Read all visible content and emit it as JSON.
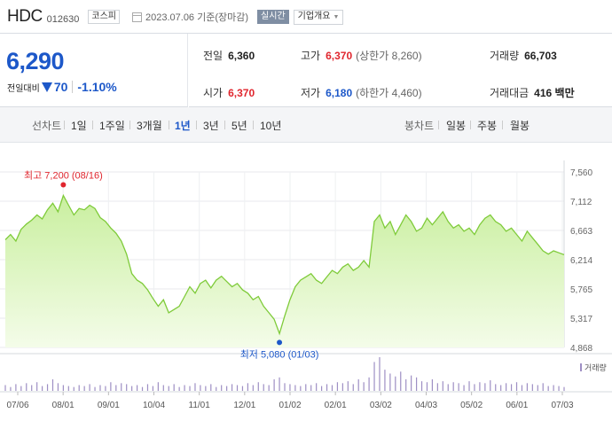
{
  "header": {
    "name": "HDC",
    "code": "012630",
    "market": "코스피",
    "date": "2023.07.06 기준(장마감)",
    "realtime": "실시간",
    "overview": "기업개요"
  },
  "price": {
    "current": "6,290",
    "change_label": "전일대비",
    "change": "70",
    "change_pct": "-1.10%",
    "direction": "down"
  },
  "stats": {
    "prev_label": "전일",
    "prev": "6,360",
    "open_label": "시가",
    "open": "6,370",
    "high_label": "고가",
    "high": "6,370",
    "upper_limit": "(상한가 8,260)",
    "low_label": "저가",
    "low": "6,180",
    "lower_limit": "(하한가 4,460)",
    "volume_label": "거래량",
    "volume": "66,703",
    "amount_label": "거래대금",
    "amount": "416 백만"
  },
  "tabs": {
    "line_label": "선차트",
    "line": [
      "1일",
      "1주일",
      "3개월",
      "1년",
      "3년",
      "5년",
      "10년"
    ],
    "active": "1년",
    "candle_label": "봉차트",
    "candle": [
      "일봉",
      "주봉",
      "월봉"
    ]
  },
  "colors": {
    "price_blue": "#1d58c9",
    "up_red": "#e0262e",
    "area_line": "#7fcb3a",
    "area_fill_top": "#c9ef9f",
    "area_fill_bottom": "#f4fce9",
    "volume_bar": "#9e8fc4"
  },
  "chart_data": {
    "type": "area",
    "y_ticks": [
      "7,560",
      "7,112",
      "6,663",
      "6,214",
      "5,765",
      "5,317",
      "4,868"
    ],
    "ylim": [
      4868,
      7560
    ],
    "x_ticks": [
      "07/06",
      "08/01",
      "09/01",
      "10/04",
      "11/01",
      "12/01",
      "01/02",
      "02/01",
      "03/02",
      "04/03",
      "05/02",
      "06/01",
      "07/03"
    ],
    "high_annotation": "최고 7,200 (08/16)",
    "low_annotation": "최저 5,080 (01/03)",
    "volume_label": "거래량",
    "grid": true,
    "values": [
      6520,
      6600,
      6500,
      6680,
      6760,
      6820,
      6900,
      6840,
      6980,
      7080,
      6950,
      7200,
      7050,
      6900,
      7000,
      6980,
      7050,
      7000,
      6860,
      6800,
      6700,
      6620,
      6500,
      6300,
      6000,
      5900,
      5850,
      5750,
      5620,
      5500,
      5600,
      5400,
      5450,
      5500,
      5650,
      5800,
      5700,
      5850,
      5900,
      5780,
      5900,
      5960,
      5880,
      5800,
      5850,
      5750,
      5700,
      5600,
      5650,
      5500,
      5400,
      5300,
      5080,
      5350,
      5600,
      5800,
      5900,
      5950,
      6000,
      5900,
      5850,
      5950,
      6050,
      6000,
      6100,
      6150,
      6050,
      6100,
      6200,
      6100,
      6800,
      6900,
      6700,
      6800,
      6600,
      6750,
      6900,
      6800,
      6650,
      6700,
      6850,
      6750,
      6850,
      6950,
      6800,
      6700,
      6750,
      6650,
      6700,
      6600,
      6750,
      6850,
      6900,
      6800,
      6750,
      6650,
      6700,
      6600,
      6500,
      6650,
      6550,
      6450,
      6350,
      6300,
      6350,
      6320,
      6290
    ],
    "volume": [
      6,
      4,
      7,
      5,
      8,
      6,
      9,
      5,
      7,
      12,
      8,
      6,
      5,
      4,
      6,
      5,
      7,
      4,
      6,
      5,
      9,
      6,
      8,
      7,
      5,
      6,
      4,
      7,
      5,
      9,
      6,
      5,
      7,
      4,
      6,
      5,
      8,
      6,
      5,
      7,
      4,
      6,
      5,
      7,
      6,
      5,
      8,
      6,
      9,
      7,
      6,
      12,
      14,
      8,
      7,
      6,
      5,
      7,
      6,
      8,
      5,
      7,
      6,
      9,
      8,
      10,
      7,
      12,
      9,
      14,
      30,
      35,
      22,
      18,
      15,
      20,
      12,
      16,
      14,
      10,
      9,
      12,
      8,
      10,
      7,
      9,
      8,
      6,
      10,
      7,
      9,
      8,
      11,
      7,
      6,
      8,
      7,
      9,
      6,
      8,
      7,
      6,
      8,
      5,
      6,
      5,
      4
    ]
  }
}
